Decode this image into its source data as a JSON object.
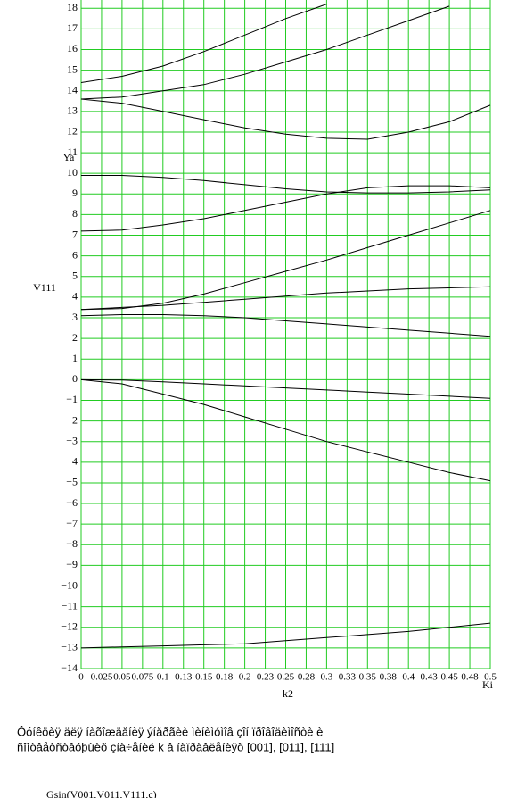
{
  "chart_data": {
    "type": "line",
    "y_label": "Ya",
    "y_label_2": "V111",
    "x_label": "k2",
    "x_label_2": "Ki",
    "x": [
      0,
      0.05,
      0.1,
      0.15,
      0.2,
      0.25,
      0.3,
      0.35,
      0.4,
      0.45,
      0.5
    ],
    "series": [
      {
        "color": "#000000",
        "values": [
          14.4,
          14.7,
          15.2,
          15.9,
          16.7,
          17.5,
          18.2,
          null,
          null,
          null,
          null
        ]
      },
      {
        "color": "#000000",
        "values": [
          13.6,
          13.7,
          14.0,
          14.3,
          14.8,
          15.4,
          16.0,
          16.7,
          17.4,
          18.1,
          null
        ]
      },
      {
        "color": "#000000",
        "values": [
          13.6,
          13.4,
          13.0,
          12.6,
          12.2,
          11.9,
          11.7,
          11.65,
          12.0,
          12.5,
          13.3
        ]
      },
      {
        "color": "#000000",
        "values": [
          9.9,
          9.9,
          9.8,
          9.65,
          9.45,
          9.25,
          9.1,
          9.05,
          9.05,
          9.1,
          9.2
        ]
      },
      {
        "color": "#000000",
        "values": [
          7.2,
          7.25,
          7.5,
          7.8,
          8.2,
          8.6,
          9.0,
          9.3,
          9.4,
          9.4,
          9.3
        ]
      },
      {
        "color": "#000000",
        "values": [
          3.4,
          3.45,
          3.7,
          4.15,
          4.7,
          5.25,
          5.8,
          6.4,
          7.0,
          7.6,
          8.2
        ]
      },
      {
        "color": "#000000",
        "values": [
          3.4,
          3.5,
          3.6,
          3.75,
          3.9,
          4.05,
          4.2,
          4.3,
          4.4,
          4.45,
          4.5
        ]
      },
      {
        "color": "#000000",
        "values": [
          3.1,
          3.15,
          3.15,
          3.1,
          3.0,
          2.85,
          2.7,
          2.55,
          2.4,
          2.25,
          2.1
        ]
      },
      {
        "color": "#000000",
        "values": [
          0,
          -0.02,
          -0.1,
          -0.2,
          -0.3,
          -0.4,
          -0.5,
          -0.6,
          -0.7,
          -0.8,
          -0.9
        ]
      },
      {
        "color": "#000000",
        "values": [
          0,
          -0.2,
          -0.7,
          -1.2,
          -1.8,
          -2.4,
          -3.0,
          -3.5,
          -4.0,
          -4.5,
          -4.9
        ]
      },
      {
        "color": "#000000",
        "values": [
          -13,
          -12.95,
          -12.9,
          -12.85,
          -12.8,
          -12.65,
          -12.5,
          -12.35,
          -12.2,
          -12.0,
          -11.8
        ]
      }
    ],
    "xlim": [
      0,
      0.5
    ],
    "ylim": [
      -14,
      18.4
    ],
    "xticks": [
      0,
      0.025,
      0.05,
      0.075,
      0.1,
      {
        "value": 0.125,
        "label": "0.13"
      },
      0.15,
      {
        "value": 0.175,
        "label": "0.18"
      },
      0.2,
      {
        "value": 0.225,
        "label": "0.23"
      },
      0.25,
      {
        "value": 0.275,
        "label": "0.28"
      },
      0.3,
      {
        "value": 0.325,
        "label": "0.33"
      },
      0.35,
      {
        "value": 0.375,
        "label": "0.38"
      },
      0.4,
      {
        "value": 0.425,
        "label": "0.43"
      },
      0.45,
      {
        "value": 0.475,
        "label": "0.48"
      },
      0.5
    ],
    "yticks": [
      18,
      17,
      16,
      15,
      14,
      13,
      12,
      11,
      10,
      9,
      8,
      7,
      6,
      5,
      4,
      3,
      2,
      1,
      0,
      {
        "value": -1,
        "label": "−1"
      },
      {
        "value": -2,
        "label": "−2"
      },
      {
        "value": -3,
        "label": "−3"
      },
      {
        "value": -4,
        "label": "−4"
      },
      {
        "value": -5,
        "label": "−5"
      },
      {
        "value": -6,
        "label": "−6"
      },
      {
        "value": -7,
        "label": "−7"
      },
      {
        "value": -8,
        "label": "−8"
      },
      {
        "value": -9,
        "label": "−9"
      },
      {
        "value": -10,
        "label": "−10"
      },
      {
        "value": -11,
        "label": "−11"
      },
      {
        "value": -12,
        "label": "−12"
      },
      {
        "value": -13,
        "label": "−13"
      },
      {
        "value": -14,
        "label": "−14"
      }
    ],
    "grid": true,
    "grid_color": "#22cc22"
  },
  "notes": {
    "line_1": "Ôóíêöèÿ äëÿ íàõîæäåíèÿ ýíåðãèè ìèíèìóìîâ çîí ïðîâîäèìîñòè è",
    "line_2": "ñîîòâåòñòâóþùèõ çíà÷åíèé k â íàïðàâëåíèÿõ [001], [011], [111]",
    "formula": "Gsin(V001,V011,V111,c)"
  }
}
